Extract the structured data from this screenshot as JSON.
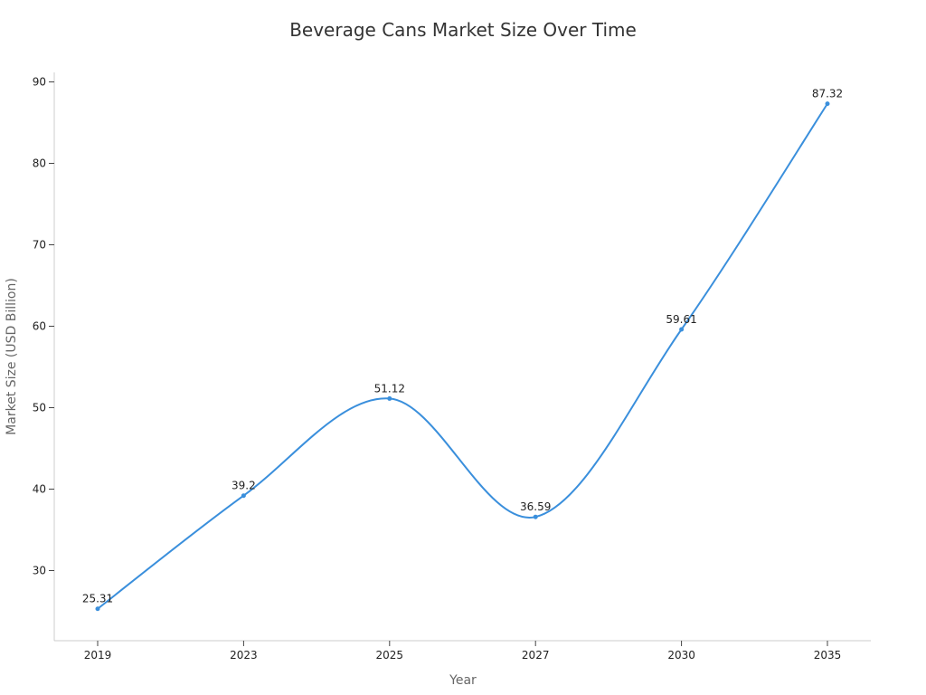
{
  "chart_data": {
    "type": "line",
    "title": "Beverage Cans Market Size Over Time",
    "xlabel": "Year",
    "ylabel": "Market Size (USD Billion)",
    "categories": [
      "2019",
      "2023",
      "2025",
      "2027",
      "2030",
      "2035"
    ],
    "series": [
      {
        "values": [
          25.31,
          39.2,
          51.12,
          36.59,
          59.61,
          87.32
        ],
        "data_labels": [
          "25.31",
          "39.2",
          "51.12",
          "36.59",
          "59.61",
          "87.32"
        ],
        "color": "#3a8fdc"
      }
    ],
    "ylim": [
      21.5,
      91
    ],
    "yticks": [
      30,
      40,
      50,
      60,
      70,
      80,
      90
    ],
    "ytick_labels": [
      "30",
      "40",
      "50",
      "60",
      "70",
      "80",
      "90"
    ],
    "line_shape": "smooth",
    "grid": false,
    "legend": "none"
  }
}
